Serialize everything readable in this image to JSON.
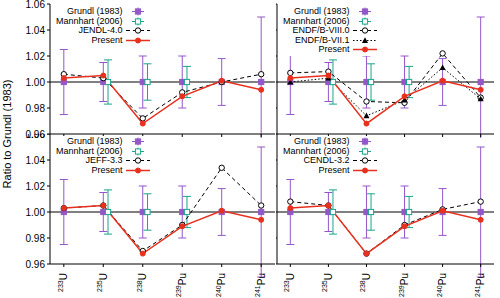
{
  "chart_data": [
    {
      "type": "line",
      "ylabel": "Ratio to Grundl (1983)",
      "categories": [
        "233U",
        "235U",
        "238U",
        "239Pu",
        "240Pu",
        "241Pu"
      ],
      "ylim": [
        0.96,
        1.06
      ],
      "yticks": [
        0.96,
        0.98,
        {
          "value": 1,
          "label": "1.00"
        },
        1.02,
        1.04,
        1.06
      ],
      "reference_y": 1,
      "legend": "upper left",
      "tick_labels": "y",
      "grid": false,
      "series": [
        {
          "name": "Grundl (1983)",
          "color": "#9457c8",
          "values": [
            1,
            1,
            1,
            1,
            1,
            1
          ],
          "errors": [
            0.025,
            0.015,
            0.02,
            0.02,
            0.018,
            0.05
          ],
          "marker": "square",
          "line_style": "none"
        },
        {
          "name": "Mannhart (2006)",
          "color": "#1aa58c",
          "values": [
            null,
            1,
            1,
            1,
            null,
            null
          ],
          "errors": [
            null,
            0.017,
            0.014,
            0.012,
            null,
            null
          ],
          "marker": "open_square",
          "line_style": "none"
        },
        {
          "name": "JENDL-4.0",
          "color": "#000000",
          "values": [
            1.006,
            1.003,
            0.972,
            0.992,
            1.0,
            1.006
          ],
          "marker": "open_circle",
          "line_style": "dashed"
        },
        {
          "name": "Present",
          "color": "#e8301e",
          "values": [
            1.003,
            1.005,
            0.968,
            0.989,
            1.001,
            0.994
          ],
          "marker": "circle",
          "line_style": "solid"
        }
      ]
    },
    {
      "type": "line",
      "categories": [
        "233U",
        "235U",
        "238U",
        "239Pu",
        "240Pu",
        "241Pu"
      ],
      "ylim": [
        0.96,
        1.06
      ],
      "yticks": [
        0.96,
        0.98,
        {
          "value": 1,
          "label": "1.00"
        },
        1.02,
        1.04,
        1.06
      ],
      "reference_y": 1,
      "legend": "upper left",
      "tick_labels": false,
      "grid": false,
      "series": [
        {
          "name": "Grundl (1983)",
          "color": "#9457c8",
          "values": [
            1,
            1,
            1,
            1,
            1,
            1
          ],
          "errors": [
            0.025,
            0.015,
            0.02,
            0.02,
            0.018,
            0.05
          ],
          "marker": "square",
          "line_style": "none"
        },
        {
          "name": "Mannhart (2006)",
          "color": "#1aa58c",
          "values": [
            null,
            1,
            1,
            1,
            null,
            null
          ],
          "errors": [
            null,
            0.017,
            0.014,
            0.012,
            null,
            null
          ],
          "marker": "open_square",
          "line_style": "none"
        },
        {
          "name": "ENDF/B-VIII.0",
          "color": "#000000",
          "values": [
            1.007,
            1.008,
            0.985,
            0.984,
            1.022,
            0.988
          ],
          "marker": "open_circle",
          "line_style": "dashed"
        },
        {
          "name": "ENDF/B-VII.1",
          "color": "#000000",
          "values": [
            1.0,
            1.003,
            0.974,
            0.986,
            1.011,
            0.987
          ],
          "marker": "triangle",
          "line_style": "dotted"
        },
        {
          "name": "Present",
          "color": "#e8301e",
          "values": [
            1.003,
            1.005,
            0.968,
            0.989,
            1.001,
            0.994
          ],
          "marker": "circle",
          "line_style": "solid"
        }
      ]
    },
    {
      "type": "line",
      "categories": [
        "233U",
        "235U",
        "238U",
        "239Pu",
        "240Pu",
        "241Pu"
      ],
      "ylim": [
        0.96,
        1.06
      ],
      "yticks": [
        0.96,
        0.98,
        {
          "value": 1,
          "label": "1.00"
        },
        1.02,
        1.04,
        1.06
      ],
      "reference_y": 1,
      "legend": "upper left",
      "tick_labels": true,
      "grid": false,
      "series": [
        {
          "name": "Grundl (1983)",
          "color": "#9457c8",
          "values": [
            1,
            1,
            1,
            1,
            1,
            1
          ],
          "errors": [
            0.025,
            0.015,
            0.02,
            0.02,
            0.018,
            0.05
          ],
          "marker": "square",
          "line_style": "none"
        },
        {
          "name": "Mannhart (2006)",
          "color": "#1aa58c",
          "values": [
            null,
            1,
            1,
            1,
            null,
            null
          ],
          "errors": [
            null,
            0.017,
            0.014,
            0.012,
            null,
            null
          ],
          "marker": "open_square",
          "line_style": "none"
        },
        {
          "name": "JEFF-3.3",
          "color": "#000000",
          "values": [
            1.003,
            1.005,
            0.97,
            0.99,
            1.034,
            1.005
          ],
          "marker": "open_circle",
          "line_style": "dashed"
        },
        {
          "name": "Present",
          "color": "#e8301e",
          "values": [
            1.003,
            1.005,
            0.968,
            0.989,
            1.001,
            0.994
          ],
          "marker": "circle",
          "line_style": "solid"
        }
      ]
    },
    {
      "type": "line",
      "categories": [
        "233U",
        "235U",
        "238U",
        "239Pu",
        "240Pu",
        "241Pu"
      ],
      "ylim": [
        0.96,
        1.06
      ],
      "yticks": [
        0.96,
        0.98,
        {
          "value": 1,
          "label": "1.00"
        },
        1.02,
        1.04,
        1.06
      ],
      "reference_y": 1,
      "legend": "upper left",
      "tick_labels": "x",
      "grid": false,
      "series": [
        {
          "name": "Grundl (1983)",
          "color": "#9457c8",
          "values": [
            1,
            1,
            1,
            1,
            1,
            1
          ],
          "errors": [
            0.025,
            0.015,
            0.02,
            0.02,
            0.018,
            0.05
          ],
          "marker": "square",
          "line_style": "none"
        },
        {
          "name": "Mannhart (2006)",
          "color": "#1aa58c",
          "values": [
            null,
            1,
            1,
            1,
            null,
            null
          ],
          "errors": [
            null,
            0.017,
            0.014,
            0.012,
            null,
            null
          ],
          "marker": "open_square",
          "line_style": "none"
        },
        {
          "name": "CENDL-3.2",
          "color": "#000000",
          "values": [
            1.008,
            1.005,
            0.968,
            0.99,
            1.002,
            1.008
          ],
          "marker": "open_circle",
          "line_style": "dashed"
        },
        {
          "name": "Present",
          "color": "#e8301e",
          "values": [
            1.003,
            1.005,
            0.968,
            0.989,
            1.001,
            0.994
          ],
          "marker": "circle",
          "line_style": "solid"
        }
      ]
    }
  ]
}
